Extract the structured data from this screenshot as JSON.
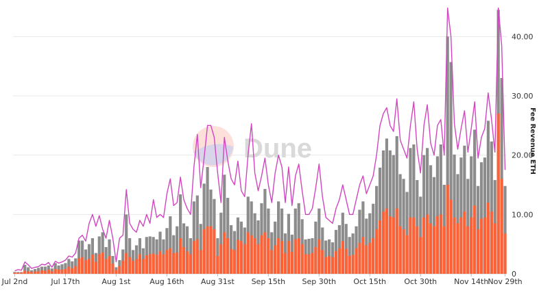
{
  "chart_data": {
    "type": "bar",
    "x_tick_labels": [
      "Jul 2nd",
      "Jul 17th",
      "Aug 1st",
      "Aug 16th",
      "Aug 31st",
      "Sep 15th",
      "Sep 30th",
      "Oct 15th",
      "Oct 30th",
      "Nov 14th",
      "Nov 29th"
    ],
    "y_tick_labels": [
      "0",
      "10.00",
      "20.00",
      "30.00",
      "40.00"
    ],
    "ylabel": "Fee Revenue ETH",
    "ylim": [
      0,
      45
    ],
    "grid": true,
    "colors": {
      "gray_bars": "#8c8c8c",
      "orange_bars": "#fc6238",
      "line": "#d045c0",
      "watermark_text": "#d9d9d9"
    },
    "watermark": "Dune",
    "series": [
      {
        "values": [
          0.5,
          0.6,
          0.5,
          1.8,
          1.3,
          0.8,
          1.0,
          1.2,
          1.6,
          1.4,
          1.8,
          1.0,
          2.0,
          1.6,
          1.8,
          2.0,
          3.0,
          2.2,
          3.0,
          5.8,
          5.8,
          4.3,
          5.2,
          6.0,
          3.7,
          6.5,
          7.2,
          4.7,
          6.0,
          3.1,
          1.4,
          2.5,
          4.3,
          10.5,
          6.0,
          4.1,
          5.0,
          6.2,
          4.5,
          6.4,
          6.5,
          6.4,
          6.0,
          7.4,
          5.8,
          7.9,
          9.8,
          6.5,
          8.1,
          13.3,
          8.5,
          8.0,
          6.2,
          12.4,
          13.4,
          8.4,
          15.0,
          18.1,
          14.4,
          12.6,
          6.0,
          10.5,
          17.0,
          13.0,
          8.6,
          7.5,
          9.8,
          9.0,
          8.0,
          13.2,
          12.5,
          10.5,
          9.2,
          12.0,
          14.5,
          11.2,
          7.3,
          9.0,
          12.5,
          11.2,
          7.0,
          10.2,
          6.8,
          11.2,
          12.0,
          9.3,
          6.0,
          6.0,
          6.2,
          9.0,
          11.2,
          8.0,
          5.8,
          6.0,
          5.5,
          7.5,
          8.3,
          10.4,
          8.5,
          6.3,
          7.0,
          8.2,
          11.0,
          12.3,
          9.5,
          10.3,
          12.0,
          15.0,
          18.0,
          21.0,
          23.0,
          21.0,
          20.2,
          23.5,
          17.0,
          16.2,
          14.0,
          21.5,
          22.0,
          16.0,
          13.2,
          20.2,
          21.4,
          18.5,
          16.5,
          20.0,
          22.0,
          15.0,
          40.0,
          36.0,
          20.3,
          17.0,
          19.8,
          21.8,
          16.2,
          20.0,
          24.5,
          15.0,
          19.0,
          19.8,
          26.0,
          22.5,
          16.0,
          44.5,
          33.0,
          14.8
        ],
        "gray_values": [
          0.3,
          0.3,
          0.3,
          1.5,
          1.1,
          0.6,
          0.8,
          1.0,
          1.2,
          1.2,
          1.4,
          0.9,
          1.8,
          1.4,
          1.6,
          1.8,
          2.5,
          2.1,
          2.6,
          5.6,
          5.6,
          4.1,
          5.0,
          6.0,
          3.5,
          6.3,
          7.0,
          4.5,
          5.8,
          3.0,
          1.1,
          2.3,
          4.1,
          10.0,
          6.0,
          4.0,
          4.8,
          6.0,
          4.3,
          6.2,
          6.3,
          6.2,
          5.8,
          7.1,
          5.8,
          7.7,
          9.7,
          6.5,
          8.0,
          13.4,
          8.5,
          8.0,
          6.0,
          12.2,
          13.2,
          8.4,
          15.2,
          18.0,
          14.2,
          12.6,
          6.0,
          10.3,
          16.7,
          12.8,
          8.2,
          7.2,
          9.5,
          8.8,
          7.8,
          13.0,
          12.2,
          10.2,
          9.0,
          11.9,
          14.3,
          11.0,
          7.0,
          8.8,
          12.2,
          11.0,
          6.8,
          10.1,
          6.6,
          11.0,
          11.9,
          9.2,
          5.8,
          5.9,
          6.0,
          8.8,
          11.0,
          7.8,
          5.6,
          5.8,
          5.3,
          7.4,
          8.2,
          10.3,
          8.4,
          6.2,
          6.8,
          8.0,
          10.8,
          12.2,
          9.3,
          10.2,
          11.8,
          14.8,
          17.9,
          20.8,
          22.8,
          20.8,
          20.0,
          23.2,
          16.8,
          16.0,
          13.8,
          21.2,
          21.8,
          15.8,
          13.0,
          20.0,
          21.2,
          18.3,
          16.3,
          19.8,
          21.8,
          15.0,
          40.0,
          35.7,
          20.1,
          16.8,
          19.6,
          21.6,
          16.0,
          19.8,
          24.3,
          14.8,
          18.8,
          19.6,
          25.8,
          22.3,
          15.8,
          44.5,
          33.0,
          14.8
        ],
        "orange_values": [
          0.2,
          0.2,
          0.2,
          0.5,
          0.4,
          0.3,
          0.4,
          0.4,
          0.6,
          0.5,
          0.7,
          0.4,
          0.8,
          0.7,
          0.7,
          0.8,
          1.2,
          0.9,
          1.3,
          2.6,
          2.8,
          2.3,
          2.5,
          3.2,
          2.0,
          3.3,
          3.6,
          2.5,
          3.0,
          1.7,
          0.6,
          1.3,
          2.2,
          3.5,
          2.8,
          2.2,
          2.5,
          3.3,
          2.5,
          3.1,
          3.3,
          3.4,
          3.2,
          3.8,
          3.3,
          4.0,
          4.3,
          3.5,
          3.6,
          6.0,
          4.5,
          3.8,
          3.3,
          5.5,
          5.8,
          4.0,
          7.5,
          8.0,
          8.0,
          7.5,
          3.0,
          5.0,
          7.0,
          6.0,
          4.2,
          4.0,
          5.7,
          5.5,
          5.0,
          7.0,
          6.5,
          6.0,
          5.0,
          6.5,
          7.0,
          6.0,
          4.0,
          4.8,
          6.0,
          5.5,
          3.5,
          5.5,
          3.7,
          5.8,
          6.0,
          5.0,
          3.3,
          3.3,
          3.5,
          4.5,
          5.8,
          4.0,
          2.8,
          3.0,
          2.8,
          3.8,
          4.3,
          5.5,
          4.2,
          3.0,
          3.2,
          4.3,
          5.2,
          6.2,
          4.8,
          5.2,
          6.0,
          7.5,
          9.0,
          10.5,
          11.0,
          9.7,
          9.5,
          11.0,
          8.0,
          7.5,
          6.5,
          9.5,
          9.5,
          8.0,
          6.2,
          9.5,
          10.0,
          8.5,
          8.0,
          9.7,
          10.0,
          8.0,
          15.0,
          12.5,
          9.5,
          8.5,
          9.5,
          10.5,
          8.0,
          9.5,
          11.5,
          7.5,
          9.3,
          9.5,
          12.0,
          10.5,
          8.5,
          27.0,
          16.0,
          6.8
        ],
        "line_values": [
          0.5,
          0.7,
          0.6,
          2.0,
          1.5,
          0.9,
          1.1,
          1.2,
          1.6,
          1.5,
          1.9,
          1.1,
          2.1,
          1.8,
          2.0,
          2.3,
          3.0,
          2.8,
          3.5,
          6.0,
          6.5,
          5.5,
          8.5,
          10.0,
          8.0,
          9.8,
          7.5,
          6.0,
          9.0,
          6.0,
          2.0,
          6.0,
          6.5,
          14.2,
          8.5,
          7.5,
          7.0,
          9.0,
          8.0,
          10.0,
          8.5,
          12.5,
          9.5,
          10.0,
          9.5,
          13.5,
          16.0,
          11.5,
          12.0,
          16.3,
          12.5,
          11.0,
          10.0,
          18.0,
          23.5,
          14.5,
          19.5,
          25.0,
          25.0,
          23.0,
          17.0,
          12.0,
          23.0,
          19.0,
          16.0,
          15.0,
          19.0,
          14.0,
          13.0,
          20.0,
          25.3,
          17.0,
          14.0,
          16.5,
          19.5,
          15.0,
          12.0,
          17.0,
          20.0,
          18.0,
          12.0,
          18.0,
          11.5,
          16.5,
          18.5,
          14.0,
          10.0,
          10.0,
          11.0,
          14.5,
          18.5,
          13.0,
          9.5,
          9.0,
          8.5,
          11.0,
          12.5,
          15.0,
          12.5,
          10.0,
          10.0,
          12.5,
          15.0,
          16.5,
          13.5,
          15.0,
          16.5,
          20.0,
          25.0,
          27.0,
          28.0,
          25.0,
          24.0,
          29.5,
          22.5,
          21.0,
          19.5,
          25.0,
          29.0,
          21.0,
          17.0,
          25.0,
          28.5,
          22.0,
          20.0,
          25.0,
          26.0,
          20.0,
          44.8,
          40.0,
          25.3,
          21.0,
          24.5,
          27.5,
          20.5,
          24.5,
          29.0,
          19.5,
          23.0,
          24.5,
          30.5,
          26.0,
          20.5,
          44.8,
          38.5,
          17.5
        ]
      }
    ]
  }
}
